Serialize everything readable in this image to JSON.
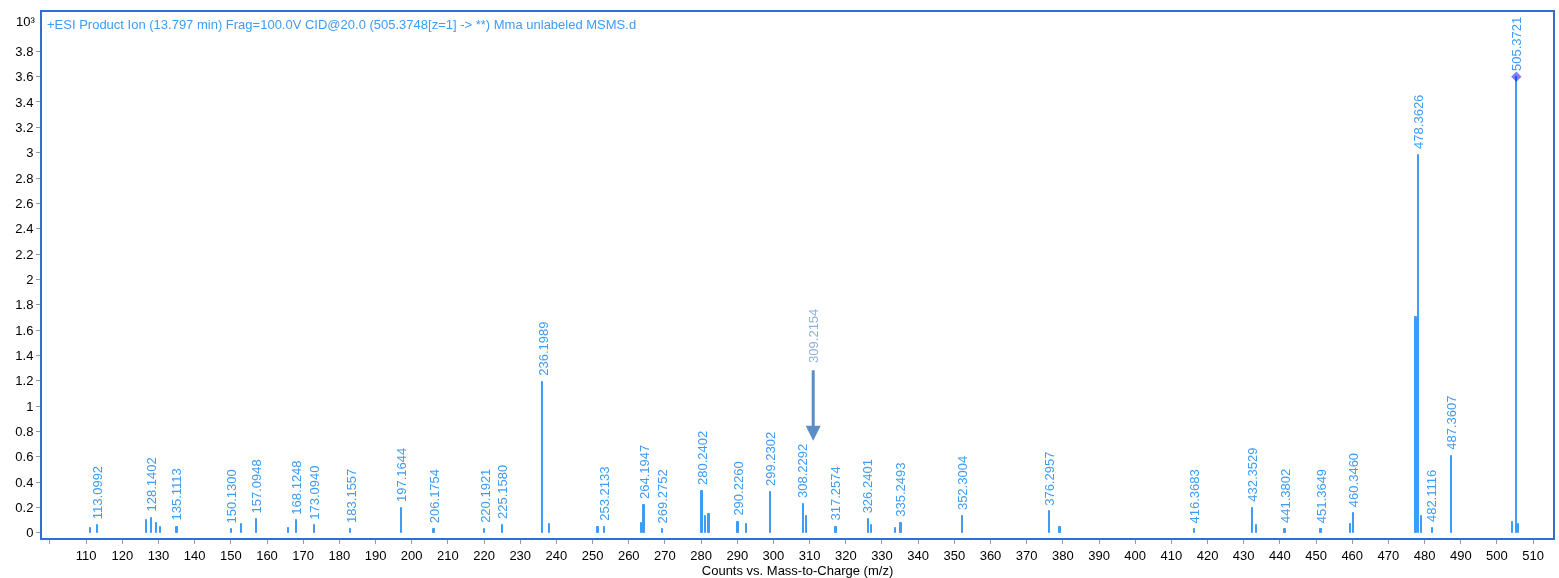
{
  "chart_data": {
    "type": "bar",
    "title": "+ESI Product Ion (13.797 min) Frag=100.0V CID@20.0 (505.3748[z=1] -> **) Mma unlabeled MSMS.d",
    "xlabel": "Counts vs. Mass-to-Charge (m/z)",
    "ylabel": "10³",
    "xlim": [
      97.8,
      515.5
    ],
    "xticks": [
      {
        "value": 100,
        "label": null
      },
      110,
      120,
      130,
      140,
      150,
      160,
      170,
      180,
      190,
      200,
      210,
      220,
      230,
      240,
      250,
      260,
      270,
      280,
      290,
      300,
      310,
      320,
      330,
      340,
      350,
      360,
      370,
      380,
      390,
      400,
      410,
      420,
      430,
      440,
      450,
      460,
      470,
      480,
      490,
      500,
      510
    ],
    "ylim": [
      -0.04,
      4.11
    ],
    "yticks": [
      0,
      0.2,
      0.4,
      0.6,
      0.8,
      1,
      1.2,
      1.4,
      1.6,
      1.8,
      2,
      2.2,
      2.4,
      2.6,
      2.8,
      3,
      3.2,
      3.4,
      3.6,
      3.8
    ],
    "series": [
      {
        "color": "#3d9cf5",
        "x": [
          111.2,
          113.0992,
          126.6,
          128.1402,
          129.5,
          130.5,
          135.1113,
          150.13,
          153.0,
          157.0948,
          166.0,
          168.1248,
          173.094,
          183.1557,
          197.1644,
          206.1754,
          220.1921,
          225.158,
          236.1989,
          238.0,
          251.5,
          253.2133,
          263.5,
          264.1947,
          269.2752,
          280.2402,
          281.3,
          282.2,
          290.226,
          292.5,
          299.2302,
          308.2292,
          309.2,
          317.2574,
          326.2401,
          327.2,
          333.8,
          335.2493,
          352.3004,
          376.2957,
          379.2,
          416.3683,
          432.3529,
          433.5,
          441.3802,
          451.3649,
          459.5,
          460.346,
          477.6,
          478.3626,
          479.1,
          482.1116,
          487.3607,
          504.3,
          505.3721,
          506.0
        ],
        "values": [
          0.04,
          0.06,
          0.1,
          0.12,
          0.08,
          0.05,
          0.05,
          0.03,
          0.07,
          0.11,
          0.04,
          0.1,
          0.06,
          0.03,
          0.2,
          0.03,
          0.03,
          0.06,
          1.19,
          0.07,
          0.05,
          0.05,
          0.08,
          0.22,
          0.03,
          0.33,
          0.13,
          0.15,
          0.09,
          0.07,
          0.32,
          0.23,
          0.13,
          0.05,
          0.11,
          0.06,
          0.04,
          0.08,
          0.13,
          0.17,
          0.05,
          0.03,
          0.2,
          0.06,
          0.03,
          0.03,
          0.07,
          0.16,
          1.7,
          2.98,
          0.13,
          0.04,
          0.61,
          0.09,
          3.6,
          0.07
        ]
      },
      {
        "type": "scatter",
        "color": "#0000ff",
        "marker": "diamond",
        "x": [
          505.3721
        ],
        "values": [
          3.6
        ]
      }
    ],
    "annotations": [
      {
        "text": "113.0992",
        "x": 113.0992,
        "y": 0.06
      },
      {
        "text": "128.1402",
        "x": 128.1402,
        "y": 0.12
      },
      {
        "text": "135.1113",
        "x": 135.1113,
        "y": 0.05
      },
      {
        "text": "150.1300",
        "x": 150.13,
        "y": 0.03
      },
      {
        "text": "157.0948",
        "x": 157.0948,
        "y": 0.11
      },
      {
        "text": "168.1248",
        "x": 168.1248,
        "y": 0.1
      },
      {
        "text": "173.0940",
        "x": 173.094,
        "y": 0.06
      },
      {
        "text": "183.1557",
        "x": 183.1557,
        "y": 0.03
      },
      {
        "text": "197.1644",
        "x": 197.1644,
        "y": 0.2
      },
      {
        "text": "206.1754",
        "x": 206.1754,
        "y": 0.03
      },
      {
        "text": "220.1921",
        "x": 220.1921,
        "y": 0.03
      },
      {
        "text": "225.1580",
        "x": 225.158,
        "y": 0.06
      },
      {
        "text": "236.1989",
        "x": 236.1989,
        "y": 1.19
      },
      {
        "text": "253.2133",
        "x": 253.2133,
        "y": 0.05
      },
      {
        "text": "264.1947",
        "x": 264.1947,
        "y": 0.22
      },
      {
        "text": "269.2752",
        "x": 269.2752,
        "y": 0.03
      },
      {
        "text": "280.2402",
        "x": 280.2402,
        "y": 0.33
      },
      {
        "text": "290.2260",
        "x": 290.226,
        "y": 0.09
      },
      {
        "text": "299.2302",
        "x": 299.2302,
        "y": 0.32
      },
      {
        "text": "308.2292",
        "x": 308.2292,
        "y": 0.23
      },
      {
        "text": "317.2574",
        "x": 317.2574,
        "y": 0.05
      },
      {
        "text": "326.2401",
        "x": 326.2401,
        "y": 0.11
      },
      {
        "text": "335.2493",
        "x": 335.2493,
        "y": 0.08
      },
      {
        "text": "352.3004",
        "x": 352.3004,
        "y": 0.13
      },
      {
        "text": "376.2957",
        "x": 376.2957,
        "y": 0.17
      },
      {
        "text": "416.3683",
        "x": 416.3683,
        "y": 0.03
      },
      {
        "text": "432.3529",
        "x": 432.3529,
        "y": 0.2
      },
      {
        "text": "441.3802",
        "x": 441.3802,
        "y": 0.03
      },
      {
        "text": "451.3649",
        "x": 451.3649,
        "y": 0.03
      },
      {
        "text": "460.3460",
        "x": 460.346,
        "y": 0.16
      },
      {
        "text": "478.3626",
        "x": 478.3626,
        "y": 2.98
      },
      {
        "text": "482.1116",
        "x": 482.1116,
        "y": 0.04
      },
      {
        "text": "487.3607",
        "x": 487.3607,
        "y": 0.61
      },
      {
        "text": "505.3721",
        "x": 505.3721,
        "y": 3.6
      },
      "309.2154"
    ]
  }
}
